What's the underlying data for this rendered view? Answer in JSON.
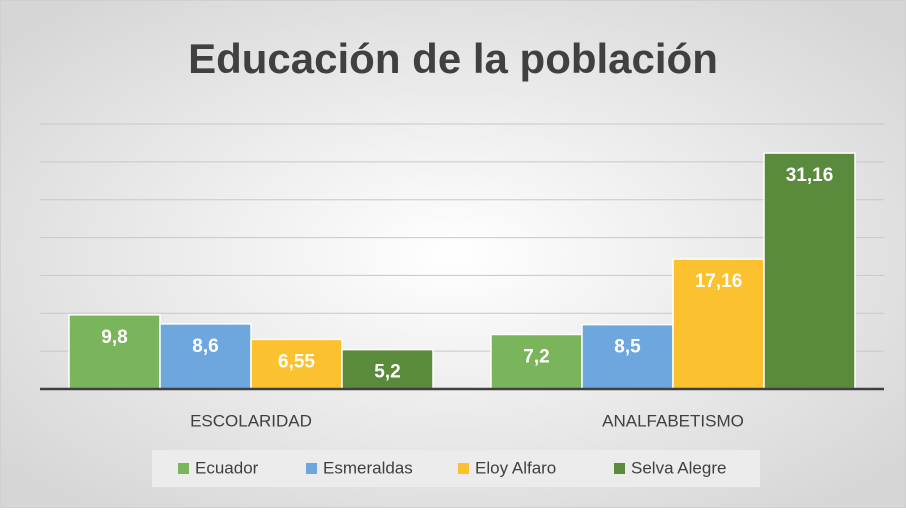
{
  "chart_data": {
    "type": "bar",
    "title": "Educación de la población",
    "categories": [
      "ESCOLARIDAD",
      "ANALFABETISMO"
    ],
    "series": [
      {
        "name": "Ecuador",
        "color": "#7ab55c",
        "values": [
          9.8,
          7.2
        ],
        "value_labels": [
          "9,8",
          "7,2"
        ]
      },
      {
        "name": "Esmeraldas",
        "color": "#6ea6de",
        "values": [
          8.6,
          8.5
        ],
        "value_labels": [
          "8,6",
          "8,5"
        ]
      },
      {
        "name": "Eloy Alfaro",
        "color": "#fcc12e",
        "values": [
          6.55,
          17.16
        ],
        "value_labels": [
          "6,55",
          "17,16"
        ]
      },
      {
        "name": "Selva Alegre",
        "color": "#5a8a3c",
        "values": [
          5.2,
          31.16
        ],
        "value_labels": [
          "5,2",
          "31,16"
        ]
      }
    ],
    "ylim": [
      0,
      35
    ],
    "yticks": [
      0,
      5,
      10,
      15,
      20,
      25,
      30,
      35
    ],
    "grid": true,
    "legend": "bottom"
  }
}
